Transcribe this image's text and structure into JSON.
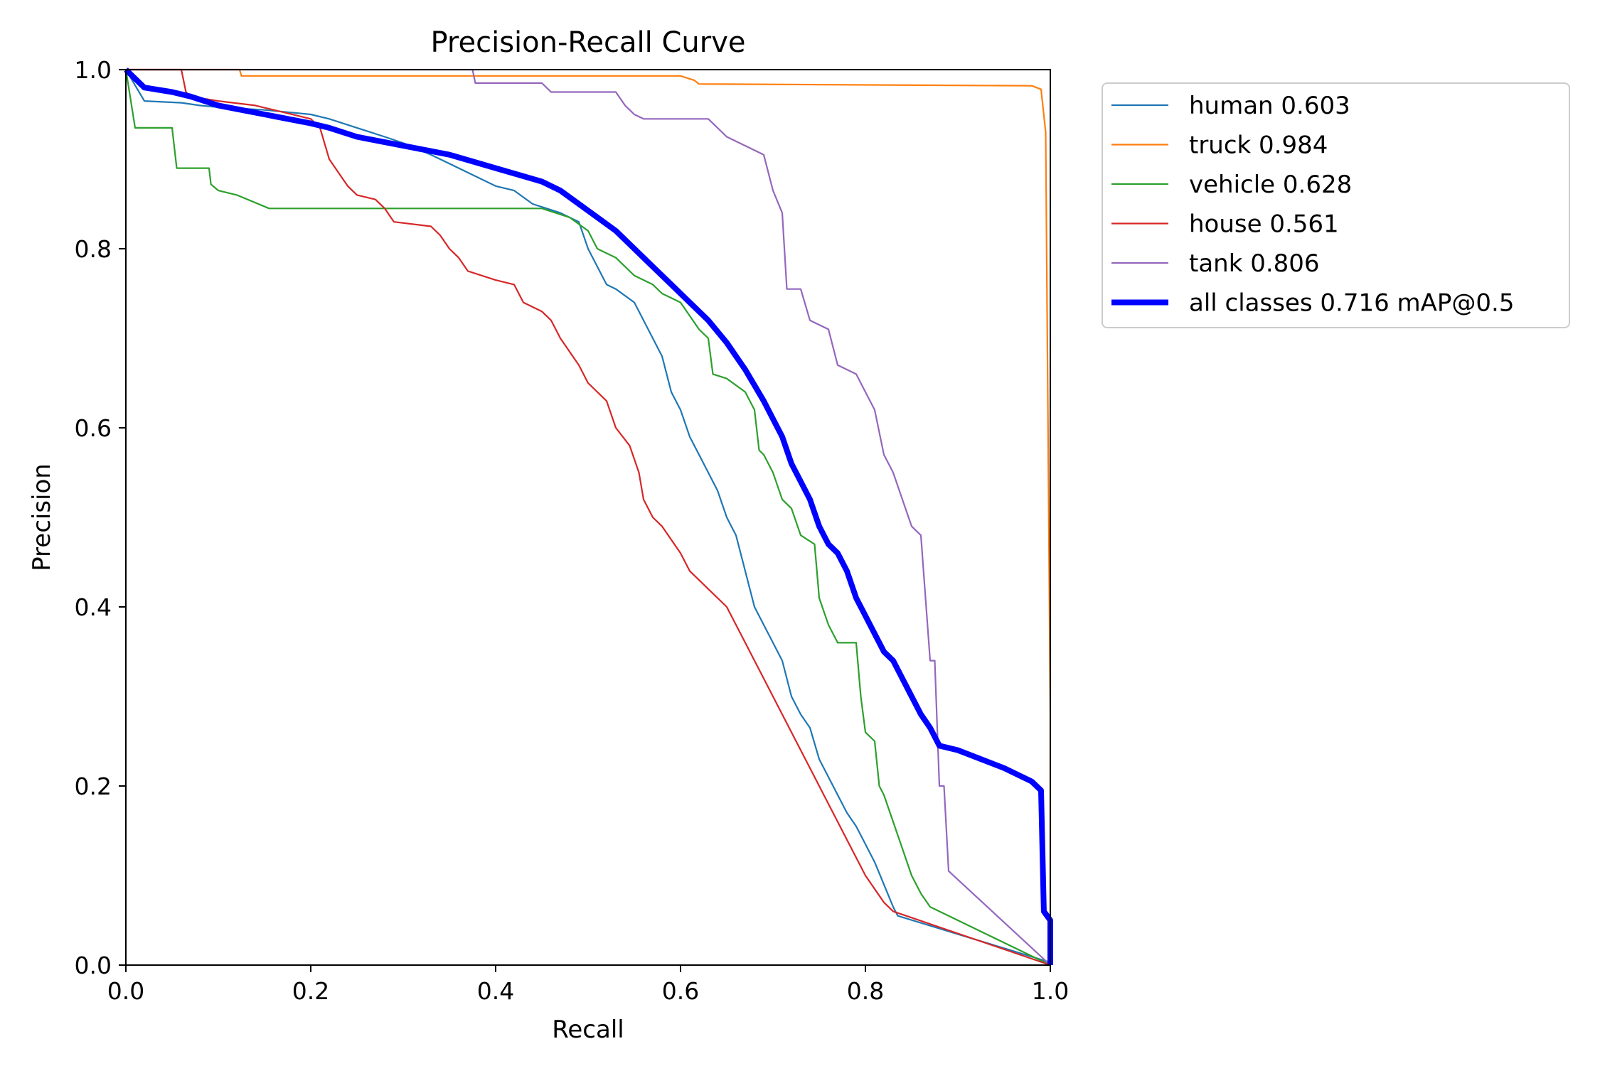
{
  "chart_data": {
    "type": "line",
    "title": "Precision-Recall Curve",
    "xlabel": "Recall",
    "ylabel": "Precision",
    "xlim": [
      0,
      1
    ],
    "ylim": [
      0,
      1
    ],
    "xticks": [
      "0.0",
      "0.2",
      "0.4",
      "0.6",
      "0.8",
      "1.0"
    ],
    "yticks": [
      "0.0",
      "0.2",
      "0.4",
      "0.6",
      "0.8",
      "1.0"
    ],
    "grid": false,
    "legend_position": "outside-top-right",
    "series": [
      {
        "name": "human",
        "legend": "human 0.603",
        "color": "#1f77b4",
        "width": "thin",
        "points": [
          [
            0,
            1
          ],
          [
            0.02,
            0.965
          ],
          [
            0.06,
            0.963
          ],
          [
            0.08,
            0.96
          ],
          [
            0.1,
            0.958
          ],
          [
            0.15,
            0.955
          ],
          [
            0.2,
            0.95
          ],
          [
            0.22,
            0.945
          ],
          [
            0.25,
            0.935
          ],
          [
            0.28,
            0.925
          ],
          [
            0.3,
            0.918
          ],
          [
            0.33,
            0.905
          ],
          [
            0.35,
            0.895
          ],
          [
            0.37,
            0.885
          ],
          [
            0.4,
            0.87
          ],
          [
            0.42,
            0.865
          ],
          [
            0.44,
            0.85
          ],
          [
            0.47,
            0.84
          ],
          [
            0.49,
            0.83
          ],
          [
            0.5,
            0.8
          ],
          [
            0.51,
            0.78
          ],
          [
            0.52,
            0.76
          ],
          [
            0.53,
            0.755
          ],
          [
            0.55,
            0.74
          ],
          [
            0.56,
            0.72
          ],
          [
            0.57,
            0.7
          ],
          [
            0.58,
            0.68
          ],
          [
            0.59,
            0.64
          ],
          [
            0.6,
            0.62
          ],
          [
            0.61,
            0.59
          ],
          [
            0.62,
            0.57
          ],
          [
            0.63,
            0.55
          ],
          [
            0.64,
            0.53
          ],
          [
            0.65,
            0.5
          ],
          [
            0.66,
            0.48
          ],
          [
            0.67,
            0.44
          ],
          [
            0.68,
            0.4
          ],
          [
            0.69,
            0.38
          ],
          [
            0.7,
            0.36
          ],
          [
            0.71,
            0.34
          ],
          [
            0.72,
            0.3
          ],
          [
            0.73,
            0.28
          ],
          [
            0.74,
            0.265
          ],
          [
            0.75,
            0.23
          ],
          [
            0.76,
            0.21
          ],
          [
            0.77,
            0.19
          ],
          [
            0.78,
            0.17
          ],
          [
            0.79,
            0.155
          ],
          [
            0.8,
            0.135
          ],
          [
            0.81,
            0.115
          ],
          [
            0.82,
            0.09
          ],
          [
            0.83,
            0.065
          ],
          [
            0.835,
            0.055
          ],
          [
            1,
            0.003
          ]
        ]
      },
      {
        "name": "truck",
        "legend": "truck 0.984",
        "color": "#ff7f0e",
        "width": "thin",
        "points": [
          [
            0,
            1
          ],
          [
            0.123,
            1
          ],
          [
            0.125,
            0.993
          ],
          [
            0.6,
            0.993
          ],
          [
            0.615,
            0.988
          ],
          [
            0.62,
            0.984
          ],
          [
            0.98,
            0.982
          ],
          [
            0.99,
            0.978
          ],
          [
            0.995,
            0.93
          ],
          [
            1,
            0.28
          ],
          [
            1,
            0.2
          ],
          [
            1,
            0
          ]
        ]
      },
      {
        "name": "vehicle",
        "legend": "vehicle 0.628",
        "color": "#2ca02c",
        "width": "thin",
        "points": [
          [
            0,
            1
          ],
          [
            0.01,
            0.935
          ],
          [
            0.05,
            0.935
          ],
          [
            0.055,
            0.89
          ],
          [
            0.09,
            0.89
          ],
          [
            0.092,
            0.872
          ],
          [
            0.1,
            0.865
          ],
          [
            0.12,
            0.86
          ],
          [
            0.155,
            0.845
          ],
          [
            0.35,
            0.845
          ],
          [
            0.45,
            0.845
          ],
          [
            0.48,
            0.835
          ],
          [
            0.5,
            0.82
          ],
          [
            0.51,
            0.8
          ],
          [
            0.53,
            0.79
          ],
          [
            0.55,
            0.77
          ],
          [
            0.57,
            0.76
          ],
          [
            0.58,
            0.75
          ],
          [
            0.6,
            0.74
          ],
          [
            0.62,
            0.71
          ],
          [
            0.63,
            0.7
          ],
          [
            0.635,
            0.66
          ],
          [
            0.65,
            0.655
          ],
          [
            0.67,
            0.64
          ],
          [
            0.68,
            0.62
          ],
          [
            0.685,
            0.575
          ],
          [
            0.69,
            0.57
          ],
          [
            0.7,
            0.55
          ],
          [
            0.71,
            0.52
          ],
          [
            0.72,
            0.51
          ],
          [
            0.73,
            0.48
          ],
          [
            0.745,
            0.47
          ],
          [
            0.75,
            0.41
          ],
          [
            0.76,
            0.38
          ],
          [
            0.77,
            0.36
          ],
          [
            0.79,
            0.36
          ],
          [
            0.795,
            0.3
          ],
          [
            0.8,
            0.26
          ],
          [
            0.81,
            0.25
          ],
          [
            0.815,
            0.2
          ],
          [
            0.82,
            0.19
          ],
          [
            0.83,
            0.16
          ],
          [
            0.84,
            0.13
          ],
          [
            0.85,
            0.1
          ],
          [
            0.86,
            0.08
          ],
          [
            0.87,
            0.065
          ],
          [
            1,
            0
          ]
        ]
      },
      {
        "name": "house",
        "legend": "house 0.561",
        "color": "#d62728",
        "width": "thin",
        "points": [
          [
            0,
            1
          ],
          [
            0.06,
            1
          ],
          [
            0.065,
            0.975
          ],
          [
            0.07,
            0.97
          ],
          [
            0.1,
            0.965
          ],
          [
            0.14,
            0.96
          ],
          [
            0.16,
            0.955
          ],
          [
            0.2,
            0.945
          ],
          [
            0.21,
            0.935
          ],
          [
            0.22,
            0.9
          ],
          [
            0.24,
            0.87
          ],
          [
            0.25,
            0.86
          ],
          [
            0.27,
            0.855
          ],
          [
            0.28,
            0.845
          ],
          [
            0.29,
            0.83
          ],
          [
            0.33,
            0.825
          ],
          [
            0.34,
            0.815
          ],
          [
            0.35,
            0.8
          ],
          [
            0.36,
            0.79
          ],
          [
            0.37,
            0.775
          ],
          [
            0.4,
            0.765
          ],
          [
            0.42,
            0.76
          ],
          [
            0.43,
            0.74
          ],
          [
            0.45,
            0.73
          ],
          [
            0.46,
            0.72
          ],
          [
            0.47,
            0.7
          ],
          [
            0.48,
            0.685
          ],
          [
            0.49,
            0.67
          ],
          [
            0.5,
            0.65
          ],
          [
            0.52,
            0.63
          ],
          [
            0.53,
            0.6
          ],
          [
            0.545,
            0.58
          ],
          [
            0.555,
            0.55
          ],
          [
            0.56,
            0.52
          ],
          [
            0.57,
            0.5
          ],
          [
            0.58,
            0.49
          ],
          [
            0.59,
            0.475
          ],
          [
            0.6,
            0.46
          ],
          [
            0.61,
            0.44
          ],
          [
            0.62,
            0.43
          ],
          [
            0.63,
            0.42
          ],
          [
            0.65,
            0.4
          ],
          [
            0.66,
            0.38
          ],
          [
            0.67,
            0.36
          ],
          [
            0.68,
            0.34
          ],
          [
            0.69,
            0.32
          ],
          [
            0.7,
            0.3
          ],
          [
            0.71,
            0.28
          ],
          [
            0.72,
            0.26
          ],
          [
            0.73,
            0.24
          ],
          [
            0.74,
            0.22
          ],
          [
            0.75,
            0.2
          ],
          [
            0.76,
            0.18
          ],
          [
            0.77,
            0.16
          ],
          [
            0.78,
            0.14
          ],
          [
            0.79,
            0.12
          ],
          [
            0.8,
            0.1
          ],
          [
            0.81,
            0.085
          ],
          [
            0.82,
            0.07
          ],
          [
            0.83,
            0.06
          ],
          [
            1,
            0
          ]
        ]
      },
      {
        "name": "tank",
        "legend": "tank 0.806",
        "color": "#9467bd",
        "width": "thin",
        "points": [
          [
            0,
            1
          ],
          [
            0.375,
            1
          ],
          [
            0.378,
            0.985
          ],
          [
            0.45,
            0.985
          ],
          [
            0.46,
            0.975
          ],
          [
            0.53,
            0.975
          ],
          [
            0.54,
            0.96
          ],
          [
            0.55,
            0.95
          ],
          [
            0.56,
            0.945
          ],
          [
            0.63,
            0.945
          ],
          [
            0.65,
            0.925
          ],
          [
            0.67,
            0.915
          ],
          [
            0.69,
            0.905
          ],
          [
            0.7,
            0.865
          ],
          [
            0.71,
            0.84
          ],
          [
            0.715,
            0.755
          ],
          [
            0.73,
            0.755
          ],
          [
            0.74,
            0.72
          ],
          [
            0.76,
            0.71
          ],
          [
            0.77,
            0.67
          ],
          [
            0.79,
            0.66
          ],
          [
            0.8,
            0.64
          ],
          [
            0.81,
            0.62
          ],
          [
            0.82,
            0.57
          ],
          [
            0.83,
            0.55
          ],
          [
            0.84,
            0.52
          ],
          [
            0.85,
            0.49
          ],
          [
            0.86,
            0.48
          ],
          [
            0.87,
            0.34
          ],
          [
            0.875,
            0.34
          ],
          [
            0.88,
            0.2
          ],
          [
            0.885,
            0.2
          ],
          [
            0.89,
            0.105
          ],
          [
            1,
            0
          ]
        ]
      },
      {
        "name": "all classes",
        "legend": "all classes 0.716 mAP@0.5",
        "color": "#0000ff",
        "width": "thick",
        "points": [
          [
            0,
            1
          ],
          [
            0.01,
            0.99
          ],
          [
            0.02,
            0.98
          ],
          [
            0.05,
            0.975
          ],
          [
            0.07,
            0.97
          ],
          [
            0.1,
            0.96
          ],
          [
            0.15,
            0.95
          ],
          [
            0.2,
            0.94
          ],
          [
            0.22,
            0.935
          ],
          [
            0.25,
            0.925
          ],
          [
            0.3,
            0.915
          ],
          [
            0.35,
            0.905
          ],
          [
            0.4,
            0.89
          ],
          [
            0.45,
            0.875
          ],
          [
            0.47,
            0.865
          ],
          [
            0.49,
            0.85
          ],
          [
            0.51,
            0.835
          ],
          [
            0.53,
            0.82
          ],
          [
            0.55,
            0.8
          ],
          [
            0.57,
            0.78
          ],
          [
            0.59,
            0.76
          ],
          [
            0.61,
            0.74
          ],
          [
            0.63,
            0.72
          ],
          [
            0.65,
            0.695
          ],
          [
            0.67,
            0.665
          ],
          [
            0.69,
            0.63
          ],
          [
            0.7,
            0.61
          ],
          [
            0.71,
            0.59
          ],
          [
            0.72,
            0.56
          ],
          [
            0.73,
            0.54
          ],
          [
            0.74,
            0.52
          ],
          [
            0.75,
            0.49
          ],
          [
            0.76,
            0.47
          ],
          [
            0.77,
            0.46
          ],
          [
            0.78,
            0.44
          ],
          [
            0.79,
            0.41
          ],
          [
            0.8,
            0.39
          ],
          [
            0.81,
            0.37
          ],
          [
            0.82,
            0.35
          ],
          [
            0.83,
            0.34
          ],
          [
            0.84,
            0.32
          ],
          [
            0.85,
            0.3
          ],
          [
            0.86,
            0.28
          ],
          [
            0.87,
            0.265
          ],
          [
            0.88,
            0.245
          ],
          [
            0.9,
            0.24
          ],
          [
            0.95,
            0.22
          ],
          [
            0.98,
            0.205
          ],
          [
            0.99,
            0.195
          ],
          [
            0.993,
            0.06
          ],
          [
            1,
            0.05
          ],
          [
            1,
            0
          ]
        ]
      }
    ]
  }
}
